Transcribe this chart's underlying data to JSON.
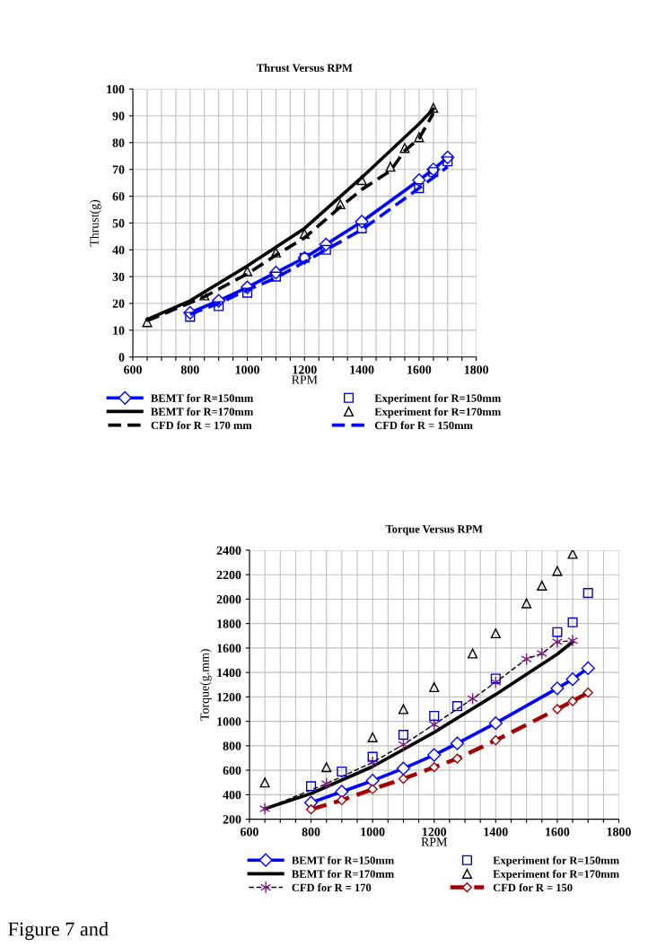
{
  "chart_data": [
    {
      "type": "line",
      "title": "Thrust Versus RPM",
      "xlabel": "RPM",
      "ylabel": "Thrust(g)",
      "xlim": [
        600,
        1800
      ],
      "xticks": [
        600,
        {
          "value": 650,
          "label": null
        },
        {
          "value": 700,
          "label": null
        },
        {
          "value": 750,
          "label": null
        },
        800,
        {
          "value": 850,
          "label": null
        },
        {
          "value": 900,
          "label": null
        },
        {
          "value": 950,
          "label": null
        },
        1000,
        {
          "value": 1050,
          "label": null
        },
        {
          "value": 1100,
          "label": null
        },
        {
          "value": 1150,
          "label": null
        },
        1200,
        {
          "value": 1250,
          "label": null
        },
        {
          "value": 1300,
          "label": null
        },
        {
          "value": 1350,
          "label": null
        },
        1400,
        {
          "value": 1450,
          "label": null
        },
        {
          "value": 1500,
          "label": null
        },
        {
          "value": 1550,
          "label": null
        },
        1600,
        {
          "value": 1650,
          "label": null
        },
        {
          "value": 1700,
          "label": null
        },
        {
          "value": 1750,
          "label": null
        },
        1800
      ],
      "ylim": [
        0,
        100
      ],
      "yticks": [
        0,
        10,
        20,
        30,
        40,
        50,
        60,
        70,
        80,
        90,
        100
      ],
      "grid": true,
      "legend": "bottom",
      "series": [
        {
          "name": "BEMT for R=150mm",
          "color": "#0000ff",
          "marker": "diamond",
          "line_style": "solid",
          "x": [
            800,
            900,
            1000,
            1100,
            1200,
            1275,
            1400,
            1600,
            1650,
            1700
          ],
          "values": [
            16.5,
            21,
            26,
            31.5,
            37,
            42,
            50.5,
            66,
            70,
            74.5
          ]
        },
        {
          "name": "BEMT for R=170mm",
          "type": "line",
          "color": "#000000",
          "marker": "none",
          "line_style": "solid",
          "x": [
            650,
            800,
            1000,
            1200,
            1400,
            1600,
            1650
          ],
          "values": [
            14,
            21,
            34,
            48,
            67,
            87,
            92.5
          ]
        },
        {
          "name": "CFD for R = 170 mm",
          "type": "line",
          "color": "#000000",
          "marker": "none",
          "line_style": "dashed",
          "x": [
            650,
            850,
            1000,
            1100,
            1200,
            1325,
            1400,
            1500,
            1550,
            1600,
            1650
          ],
          "values": [
            13.5,
            22.5,
            31,
            38,
            44.5,
            56,
            62.5,
            69.5,
            77,
            81.5,
            91
          ]
        },
        {
          "name": "Experiment for R=150mm",
          "type": "scatter",
          "color": "#0000cc",
          "marker": "square",
          "x": [
            800,
            900,
            1000,
            1100,
            1200,
            1275,
            1400,
            1600,
            1650,
            1700
          ],
          "values": [
            15,
            19,
            24,
            30,
            37,
            40,
            48,
            63,
            69,
            73
          ]
        },
        {
          "name": "Experiment for R=170mm",
          "type": "scatter",
          "color": "#000000",
          "marker": "triangle",
          "x": [
            650,
            850,
            1000,
            1100,
            1200,
            1325,
            1400,
            1500,
            1550,
            1600,
            1650
          ],
          "values": [
            13,
            23,
            32,
            39,
            46,
            57,
            66,
            71,
            78,
            82,
            93
          ]
        },
        {
          "name": "CFD for R = 150mm",
          "type": "line",
          "color": "#0000ff",
          "marker": "none",
          "line_style": "dashed",
          "x": [
            800,
            900,
            1000,
            1100,
            1200,
            1275,
            1400,
            1600,
            1650,
            1700
          ],
          "values": [
            16,
            20,
            25,
            29.5,
            35.5,
            40,
            47.5,
            63,
            67,
            71
          ]
        }
      ]
    },
    {
      "type": "line",
      "title": "Torque Versus RPM",
      "xlabel": "RPM",
      "ylabel": "Torque(g.mm)",
      "xlim": [
        600,
        1800
      ],
      "xticks": [
        600,
        {
          "value": 650,
          "label": null
        },
        {
          "value": 700,
          "label": null
        },
        {
          "value": 750,
          "label": null
        },
        800,
        {
          "value": 850,
          "label": null
        },
        {
          "value": 900,
          "label": null
        },
        {
          "value": 950,
          "label": null
        },
        1000,
        {
          "value": 1050,
          "label": null
        },
        {
          "value": 1100,
          "label": null
        },
        {
          "value": 1150,
          "label": null
        },
        1200,
        {
          "value": 1250,
          "label": null
        },
        {
          "value": 1300,
          "label": null
        },
        {
          "value": 1350,
          "label": null
        },
        1400,
        {
          "value": 1450,
          "label": null
        },
        {
          "value": 1500,
          "label": null
        },
        {
          "value": 1550,
          "label": null
        },
        1600,
        {
          "value": 1650,
          "label": null
        },
        {
          "value": 1700,
          "label": null
        },
        {
          "value": 1750,
          "label": null
        },
        1800
      ],
      "ylim": [
        200,
        2400
      ],
      "yticks": [
        200,
        400,
        600,
        800,
        1000,
        1200,
        1400,
        1600,
        1800,
        2000,
        2200,
        2400
      ],
      "grid": true,
      "legend": "bottom",
      "annotations": [
        "Figure 7 and"
      ],
      "series": [
        {
          "name": "BEMT for R=150mm",
          "color": "#0000ff",
          "marker": "diamond",
          "line_style": "solid",
          "x": [
            800,
            900,
            1000,
            1100,
            1200,
            1275,
            1400,
            1600,
            1650,
            1700
          ],
          "values": [
            335,
            425,
            515,
            615,
            725,
            820,
            985,
            1270,
            1345,
            1435
          ]
        },
        {
          "name": "BEMT for R=170mm",
          "type": "line",
          "color": "#000000",
          "marker": "none",
          "line_style": "solid",
          "x": [
            650,
            800,
            1000,
            1200,
            1400,
            1600,
            1650
          ],
          "values": [
            285,
            410,
            630,
            910,
            1220,
            1550,
            1650
          ]
        },
        {
          "name": "CFD for R = 170",
          "type": "line",
          "color": "#7f1f7f",
          "marker": "cross",
          "line_style": "dashed",
          "x": [
            650,
            850,
            1000,
            1100,
            1200,
            1325,
            1400,
            1500,
            1550,
            1600,
            1650
          ],
          "values": [
            285,
            490,
            665,
            810,
            975,
            1185,
            1320,
            1510,
            1555,
            1650,
            1660
          ]
        },
        {
          "name": "Experiment for R=150mm",
          "type": "scatter",
          "color": "#0000cc",
          "marker": "square",
          "x": [
            800,
            900,
            1000,
            1100,
            1200,
            1275,
            1400,
            1600,
            1650,
            1700
          ],
          "values": [
            470,
            590,
            710,
            890,
            1045,
            1125,
            1350,
            1730,
            1810,
            2050
          ]
        },
        {
          "name": "Experiment for R=170mm",
          "type": "scatter",
          "color": "#000000",
          "marker": "triangle",
          "x": [
            650,
            850,
            1000,
            1100,
            1200,
            1325,
            1400,
            1500,
            1550,
            1600,
            1650
          ],
          "values": [
            500,
            625,
            870,
            1100,
            1280,
            1555,
            1720,
            1965,
            2110,
            2230,
            2370
          ]
        },
        {
          "name": "CFD for R = 150",
          "type": "line",
          "color": "#a00000",
          "marker": "diamond",
          "line_style": "dashed",
          "x": [
            800,
            900,
            1000,
            1100,
            1200,
            1275,
            1400,
            1600,
            1650,
            1700
          ],
          "values": [
            280,
            355,
            445,
            530,
            625,
            695,
            845,
            1100,
            1165,
            1235
          ]
        }
      ]
    }
  ]
}
